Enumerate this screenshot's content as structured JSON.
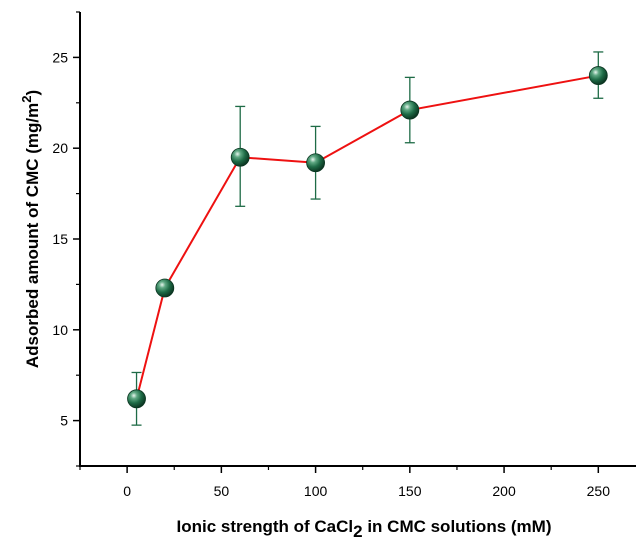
{
  "chart_data": {
    "type": "line",
    "title": "",
    "xlabel": {
      "parts": [
        {
          "text": "Ionic strength of CaCl",
          "sub": false
        },
        {
          "text": "2",
          "sub": true
        },
        {
          "text": " in CMC solutions (mM)",
          "sub": false
        }
      ]
    },
    "ylabel": {
      "parts": [
        {
          "text": "Adsorbed amount of CMC (mg/m",
          "sup": false
        },
        {
          "text": "2",
          "sup": true
        },
        {
          "text": ")",
          "sup": false
        }
      ]
    },
    "xlim": [
      -25,
      270
    ],
    "ylim": [
      2.5,
      27.5
    ],
    "xticks": [
      0,
      50,
      100,
      150,
      200,
      250
    ],
    "yticks": [
      5,
      10,
      15,
      20,
      25
    ],
    "grid": false,
    "legend": "none",
    "series": [
      {
        "x": [
          5,
          20,
          60,
          100,
          150,
          250
        ],
        "y": [
          6.2,
          12.3,
          19.5,
          19.2,
          22.1,
          24.0
        ],
        "err_low": [
          1.45,
          0,
          2.7,
          2.0,
          1.8,
          1.25
        ],
        "err_high": [
          1.45,
          0,
          2.8,
          2.0,
          1.8,
          1.3
        ],
        "line_color": "#ee1111",
        "marker_color": "#1e6b46",
        "errorbar_color": "#1e6b46"
      }
    ]
  }
}
